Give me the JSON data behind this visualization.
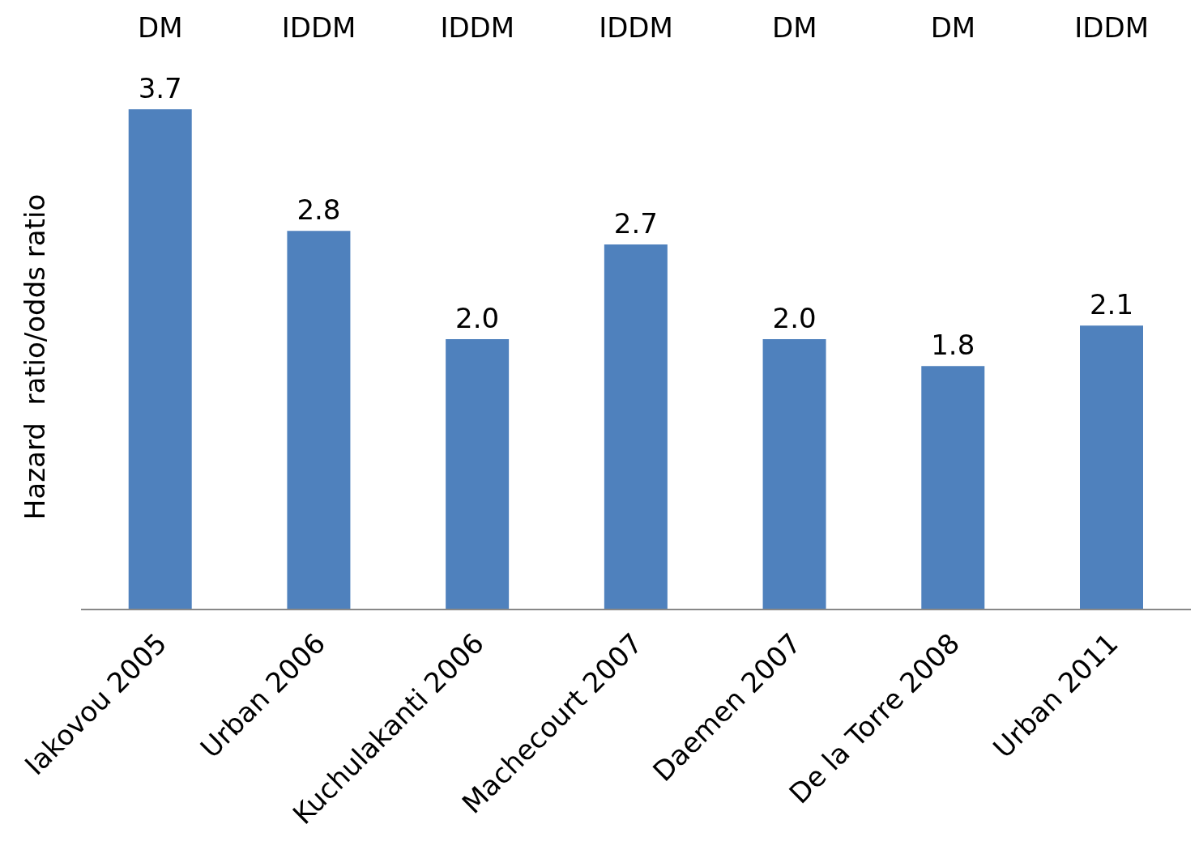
{
  "chart_data": {
    "type": "bar",
    "ylabel": "Hazard  ratio/odds ratio",
    "categories": [
      "Iakovou 2005",
      "Urban 2006",
      "Kuchulakanti 2006",
      "Machecourt 2007",
      "Daemen 2007",
      "De la Torre 2008",
      "Urban 2011"
    ],
    "values": [
      3.7,
      2.8,
      2.0,
      2.7,
      2.0,
      1.8,
      2.1
    ],
    "value_labels": [
      "3.7",
      "2.8",
      "2.0",
      "2.7",
      "2.0",
      "1.8",
      "2.1"
    ],
    "color": "#4f81bd",
    "tick_labels": "x",
    "grid": false,
    "legend": false,
    "annotations": [
      "DM",
      "IDDM",
      "IDDM",
      "IDDM",
      "DM",
      "DM",
      "IDDM"
    ]
  }
}
